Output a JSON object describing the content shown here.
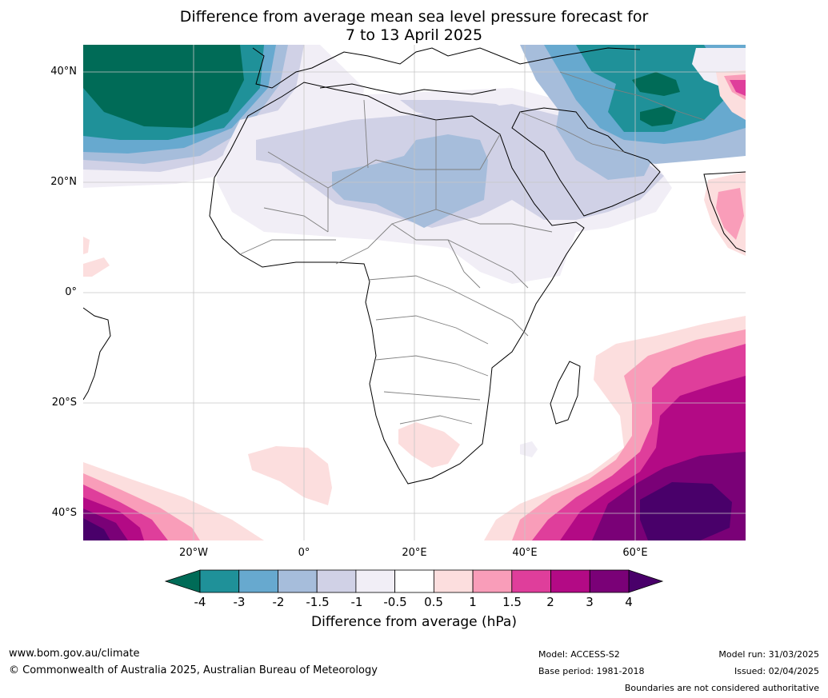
{
  "title_line1": "Difference from average mean sea level pressure forecast for",
  "title_line2": "7 to 13 April 2025",
  "map": {
    "lat_ticks": [
      "40°N",
      "20°N",
      "0°",
      "20°S",
      "40°S"
    ],
    "lon_ticks": [
      "20°W",
      "0°",
      "20°E",
      "40°E",
      "60°E"
    ],
    "lat_range": [
      -45,
      45
    ],
    "lon_range": [
      -40,
      80
    ],
    "grid": true
  },
  "colorbar": {
    "tick_labels": [
      "-4",
      "-3",
      "-2",
      "-1.5",
      "-1",
      "-0.5",
      "0.5",
      "1",
      "1.5",
      "2",
      "3",
      "4"
    ],
    "colors": {
      "below_minus4": "#006b57",
      "minus4_to_minus3": "#1f9199",
      "minus3_to_minus2": "#67a9cf",
      "minus2_to_minus1_5": "#a6bddb",
      "minus1_5_to_minus1": "#d0d1e6",
      "minus1_to_minus0_5": "#f1eef6",
      "minus0_5_to_0_5": "#ffffff",
      "0_5_to_1": "#fcdede",
      "1_to_1_5": "#f99db9",
      "1_5_to_2": "#df3e9b",
      "2_to_3": "#b30a85",
      "3_to_4": "#7a0177",
      "above_4": "#49006a"
    },
    "label": "Difference from average (hPa)"
  },
  "footer": {
    "website": "www.bom.gov.au/climate",
    "copyright": "© Commonwealth of Australia 2025, Australian Bureau of Meteorology",
    "model": "Model: ACCESS-S2",
    "base_period": "Base period: 1981-2018",
    "model_run": "Model run: 31/03/2025",
    "issued": "Issued: 02/04/2025",
    "disclaimer": "Boundaries are not considered authoritative"
  }
}
